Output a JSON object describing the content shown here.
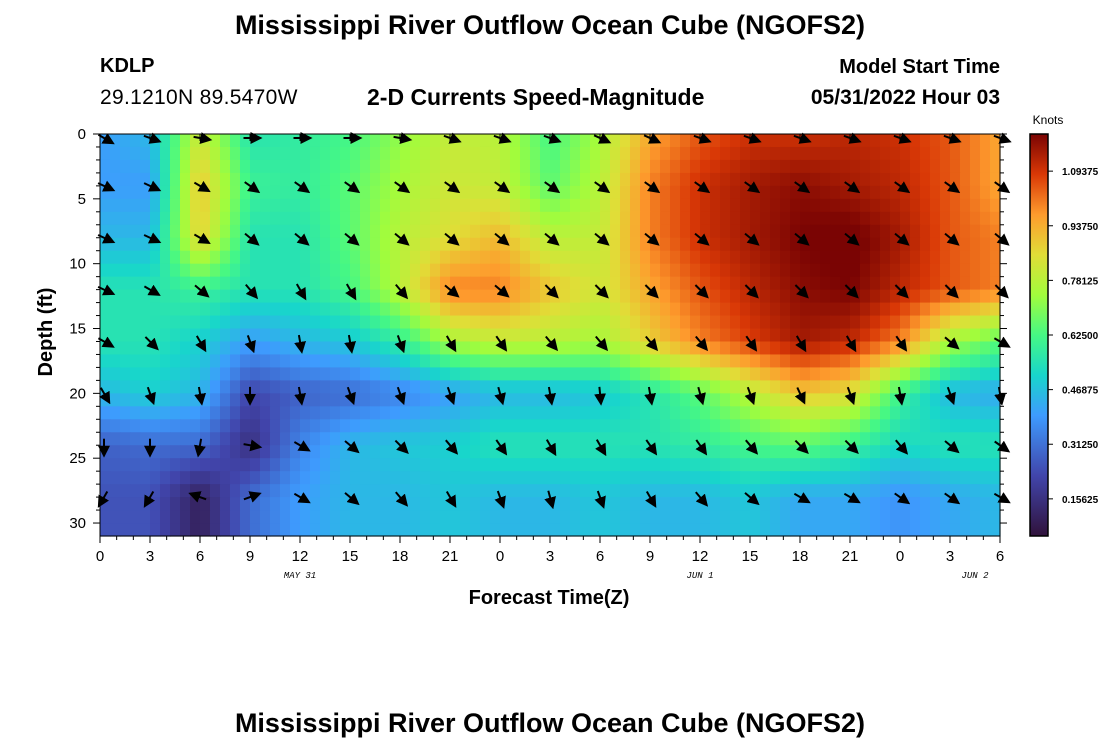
{
  "header": {
    "title": "Mississippi River Outflow Ocean Cube (NGOFS2)",
    "station_id": "KDLP",
    "station_coords": "29.1210N  89.5470W",
    "chart_title": "2-D Currents Speed-Magnitude",
    "model_start_label": "Model Start Time",
    "model_start_value": "05/31/2022 Hour 03"
  },
  "footer": {
    "title": "Mississippi River Outflow Ocean Cube (NGOFS2)"
  },
  "chart_data": {
    "type": "heatmap",
    "title": "2-D Currents Speed-Magnitude",
    "xlabel": "Forecast Time(Z)",
    "ylabel": "Depth (ft)",
    "x_tick_labels": [
      "0",
      "3",
      "6",
      "9",
      "12",
      "15",
      "18",
      "21",
      "0",
      "3",
      "6",
      "9",
      "12",
      "15",
      "18",
      "21",
      "0",
      "3",
      "6"
    ],
    "date_labels": [
      {
        "text": "MAY 31",
        "at_tick": 4
      },
      {
        "text": "JUN 1",
        "at_tick": 12
      },
      {
        "text": "JUN 2",
        "at_tick": 17.5
      }
    ],
    "y_ticks": [
      0,
      5,
      10,
      15,
      20,
      25,
      30
    ],
    "ylim": [
      31,
      0
    ],
    "colorbar": {
      "label": "Knots",
      "range": [
        0.05,
        1.2
      ],
      "tick_values": [
        0.15625,
        0.3125,
        0.46875,
        0.625,
        0.78125,
        0.9375,
        1.09375
      ],
      "tick_labels": [
        "0.15625",
        "0.31250",
        "0.46875",
        "0.62500",
        "0.78125",
        "0.93750",
        "1.09375"
      ]
    },
    "vector_depths": [
      0,
      4,
      8,
      12,
      16,
      20,
      24,
      28
    ],
    "speed_grid": [
      [
        0.4,
        0.45,
        0.82,
        0.55,
        0.58,
        0.62,
        0.72,
        0.8,
        0.78,
        0.62,
        0.75,
        0.95,
        1.05,
        1.1,
        1.1,
        1.12,
        1.1,
        1.05,
        0.95
      ],
      [
        0.4,
        0.4,
        0.9,
        0.6,
        0.58,
        0.65,
        0.75,
        0.82,
        0.8,
        0.65,
        0.78,
        1.0,
        1.1,
        1.15,
        1.18,
        1.15,
        1.12,
        1.05,
        0.95
      ],
      [
        0.45,
        0.45,
        0.88,
        0.55,
        0.55,
        0.65,
        0.78,
        0.85,
        0.92,
        0.78,
        0.8,
        1.0,
        1.1,
        1.15,
        1.2,
        1.22,
        1.15,
        1.05,
        1.0
      ],
      [
        0.55,
        0.55,
        0.6,
        0.55,
        0.55,
        0.62,
        0.78,
        1.0,
        1.0,
        0.9,
        0.82,
        0.95,
        1.05,
        1.12,
        1.18,
        1.2,
        1.12,
        1.05,
        1.0
      ],
      [
        0.55,
        0.55,
        0.5,
        0.4,
        0.45,
        0.48,
        0.58,
        0.75,
        0.8,
        0.78,
        0.75,
        0.88,
        1.0,
        1.08,
        1.15,
        1.12,
        1.0,
        0.75,
        0.65
      ],
      [
        0.45,
        0.5,
        0.45,
        0.22,
        0.28,
        0.3,
        0.35,
        0.4,
        0.45,
        0.45,
        0.48,
        0.55,
        0.65,
        0.78,
        0.9,
        0.85,
        0.6,
        0.45,
        0.42
      ],
      [
        0.28,
        0.3,
        0.3,
        0.15,
        0.35,
        0.45,
        0.48,
        0.5,
        0.55,
        0.55,
        0.55,
        0.55,
        0.58,
        0.62,
        0.65,
        0.6,
        0.52,
        0.55,
        0.55
      ],
      [
        0.25,
        0.25,
        0.1,
        0.3,
        0.4,
        0.45,
        0.45,
        0.48,
        0.45,
        0.45,
        0.48,
        0.45,
        0.45,
        0.48,
        0.42,
        0.42,
        0.38,
        0.42,
        0.45
      ]
    ],
    "vector_angles_deg": [
      [
        30,
        20,
        10,
        0,
        0,
        0,
        10,
        20,
        20,
        20,
        25,
        25,
        20,
        20,
        20,
        20,
        20,
        20,
        20
      ],
      [
        25,
        25,
        30,
        35,
        35,
        35,
        35,
        35,
        35,
        35,
        35,
        35,
        35,
        35,
        35,
        35,
        35,
        35,
        35
      ],
      [
        25,
        25,
        30,
        40,
        40,
        40,
        40,
        40,
        40,
        40,
        40,
        40,
        40,
        40,
        40,
        40,
        40,
        40,
        40
      ],
      [
        25,
        30,
        40,
        50,
        60,
        60,
        50,
        40,
        40,
        45,
        45,
        45,
        45,
        45,
        45,
        45,
        45,
        45,
        45
      ],
      [
        30,
        45,
        60,
        70,
        80,
        80,
        70,
        60,
        55,
        50,
        50,
        50,
        50,
        55,
        60,
        60,
        55,
        40,
        30
      ],
      [
        60,
        70,
        80,
        90,
        80,
        70,
        70,
        70,
        75,
        80,
        85,
        80,
        75,
        70,
        65,
        70,
        80,
        70,
        80
      ],
      [
        90,
        90,
        100,
        10,
        30,
        40,
        45,
        50,
        55,
        60,
        60,
        55,
        55,
        50,
        45,
        45,
        50,
        40,
        35
      ],
      [
        120,
        120,
        200,
        340,
        30,
        40,
        50,
        60,
        70,
        75,
        70,
        60,
        50,
        40,
        30,
        30,
        35,
        35,
        30
      ]
    ]
  }
}
